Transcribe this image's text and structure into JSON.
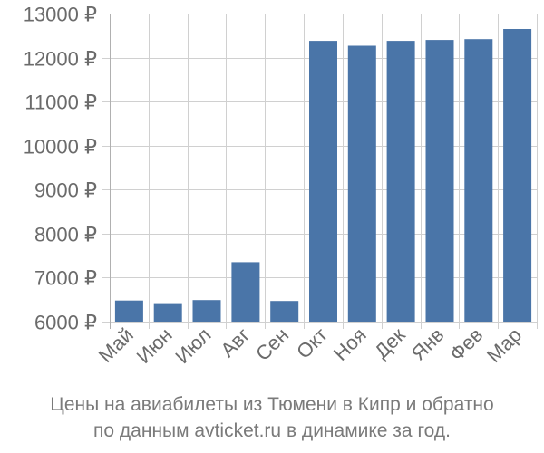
{
  "caption": {
    "line1": "Цены на авиабилеты из Тюмени в Кипр и обратно",
    "line2": "по данным avticket.ru в динамике за год."
  },
  "colors": {
    "bar": "#4a75a8",
    "grid": "#d0d0d0",
    "text": "#6b6b6b"
  },
  "chart_data": {
    "type": "bar",
    "categories": [
      "Май",
      "Июн",
      "Июл",
      "Авг",
      "Сен",
      "Окт",
      "Ноя",
      "Дек",
      "Янв",
      "Фев",
      "Мар"
    ],
    "series": [
      {
        "values": [
          6480,
          6420,
          6490,
          7350,
          6470,
          12380,
          12270,
          12380,
          12400,
          12420,
          12650
        ]
      }
    ],
    "ylim": [
      6000,
      13000
    ],
    "yticks": [
      6000,
      7000,
      8000,
      9000,
      10000,
      11000,
      12000,
      13000
    ],
    "ytick_labels": [
      "6000 ₽",
      "7000 ₽",
      "8000 ₽",
      "9000 ₽",
      "10000 ₽",
      "11000 ₽",
      "12000 ₽",
      "13000 ₽"
    ],
    "grid": true,
    "title": "",
    "xlabel": "",
    "ylabel": ""
  }
}
